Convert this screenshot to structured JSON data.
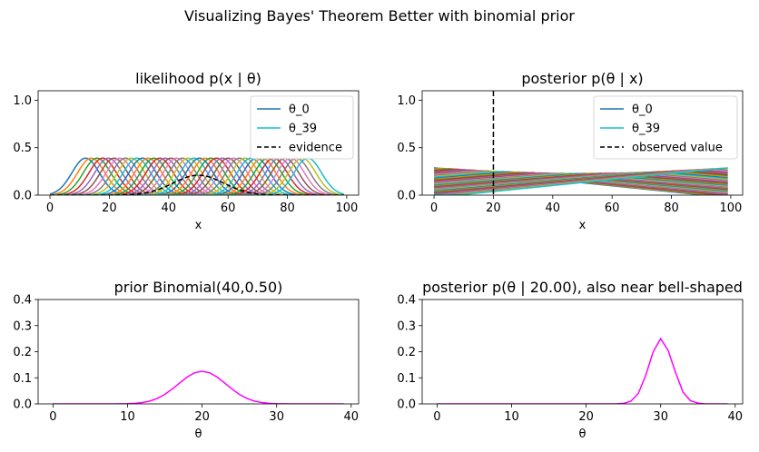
{
  "figure": {
    "suptitle": "Visualizing Bayes' Theorem Better with binomial prior"
  },
  "chart_data": [
    {
      "id": "likelihood",
      "type": "line",
      "title": "likelihood p(x | θ)",
      "xlabel": "x",
      "ylabel": "",
      "xlim": [
        -4,
        104
      ],
      "ylim": [
        0,
        1.1
      ],
      "xticks": [
        0,
        20,
        40,
        60,
        80,
        100
      ],
      "yticks": [
        0.0,
        0.5,
        1.0
      ],
      "ytick_labels": [
        "0.0",
        "0.5",
        "1.0"
      ],
      "x_range": [
        0,
        99
      ],
      "series_family": {
        "count": 40,
        "label_first": "θ_0",
        "label_last": "θ_39",
        "shape": "bell-shaped curves of peak ~0.39 with centers from x≈12 to x≈87, stepping ≈1.9 per θ"
      },
      "center_first": 12,
      "center_step": 1.92,
      "peak": 0.39,
      "spread": 4.6,
      "evidence": {
        "label": "evidence",
        "center": 50,
        "peak": 0.21,
        "spread": 8.5,
        "style": "dashed black"
      },
      "legend_position": "upper right"
    },
    {
      "id": "posterior_x",
      "type": "line",
      "title": "posterior p(θ  | x)",
      "xlabel": "x",
      "ylabel": "",
      "xlim": [
        -4,
        104
      ],
      "ylim": [
        0,
        1.1
      ],
      "xticks": [
        0,
        20,
        40,
        60,
        80,
        100
      ],
      "yticks": [
        0.0,
        0.5,
        1.0
      ],
      "ytick_labels": [
        "0.0",
        "0.5",
        "1.0"
      ],
      "x_range": [
        0,
        99
      ],
      "series_family": {
        "count": 40,
        "label_first": "θ_0",
        "label_last": "θ_39",
        "shape": "flat curves crossing between 0.0 and ~0.29 across x"
      },
      "observed_value": {
        "label": "observed value",
        "x": 20,
        "style": "dashed black vertical"
      },
      "legend_position": "upper right"
    },
    {
      "id": "prior",
      "type": "line",
      "title": "prior Binomial(40,0.50)",
      "xlabel": "θ",
      "ylabel": "",
      "xlim": [
        -2,
        41
      ],
      "ylim": [
        0,
        0.4
      ],
      "xticks": [
        0,
        10,
        20,
        30,
        40
      ],
      "yticks": [
        0.0,
        0.1,
        0.2,
        0.3,
        0.4
      ],
      "ytick_labels": [
        "0.0",
        "0.1",
        "0.2",
        "0.3",
        "0.4"
      ],
      "binomial": {
        "n": 40,
        "p": 0.5
      },
      "theta_range": [
        0,
        39
      ],
      "color": "#ff00ff",
      "peak_value_approx": 0.125
    },
    {
      "id": "posterior_observed",
      "type": "line",
      "title": "posterior p(θ  | 20.00), also near bell-shaped",
      "xlabel": "θ",
      "ylabel": "",
      "xlim": [
        -2,
        41
      ],
      "ylim": [
        0,
        0.4
      ],
      "xticks": [
        0,
        10,
        20,
        30,
        40
      ],
      "yticks": [
        0.0,
        0.1,
        0.2,
        0.3,
        0.4
      ],
      "ytick_labels": [
        "0.0",
        "0.1",
        "0.2",
        "0.3",
        "0.4"
      ],
      "theta": [
        0,
        1,
        2,
        3,
        4,
        5,
        6,
        7,
        8,
        9,
        10,
        11,
        12,
        13,
        14,
        15,
        16,
        17,
        18,
        19,
        20,
        21,
        22,
        23,
        24,
        25,
        26,
        27,
        28,
        29,
        30,
        31,
        32,
        33,
        34,
        35,
        36,
        37,
        38,
        39
      ],
      "values": [
        0,
        0,
        0,
        0,
        0,
        0,
        0,
        0,
        0,
        0,
        0,
        0,
        0,
        0,
        0,
        0,
        0,
        0,
        0,
        0,
        0,
        0,
        0,
        0,
        0,
        0.002,
        0.01,
        0.04,
        0.11,
        0.2,
        0.25,
        0.205,
        0.12,
        0.045,
        0.012,
        0.003,
        0,
        0,
        0,
        0
      ],
      "color": "#ff00ff",
      "peak": {
        "theta": 30,
        "value": 0.25
      }
    }
  ]
}
